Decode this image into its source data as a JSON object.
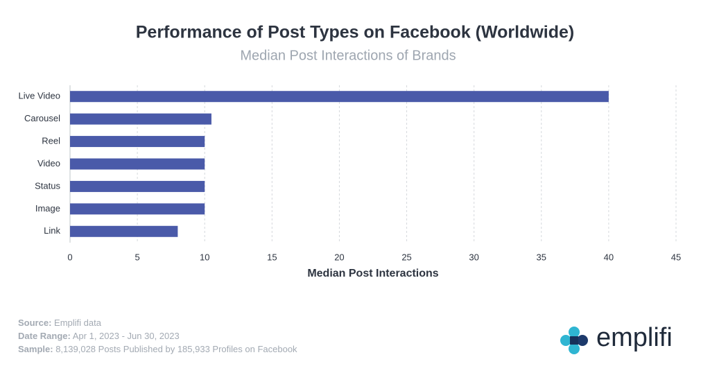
{
  "chart_data": {
    "type": "bar",
    "orientation": "horizontal",
    "title": "Performance of Post Types on Facebook (Worldwide)",
    "subtitle": "Median Post Interactions of Brands",
    "x_label": "Median Post Interactions",
    "categories": [
      "Live Video",
      "Carousel",
      "Reel",
      "Video",
      "Status",
      "Image",
      "Link"
    ],
    "values": [
      40,
      10.5,
      10,
      10,
      10,
      10,
      8
    ],
    "color": "#4a5aa9",
    "xlim": [
      0,
      45
    ],
    "xticks": [
      0,
      5,
      10,
      15,
      20,
      25,
      30,
      35,
      40,
      45
    ],
    "grid": true
  },
  "footer": {
    "source": {
      "label": "Source:",
      "value": "Emplifi data"
    },
    "date_range": {
      "label": "Date Range:",
      "value": "Apr 1, 2023 - Jun 30, 2023"
    },
    "sample": {
      "label": "Sample:",
      "value": "8,139,028 Posts Published by 185,933 Profiles on Facebook"
    }
  },
  "logo": {
    "text": "emplifi"
  }
}
